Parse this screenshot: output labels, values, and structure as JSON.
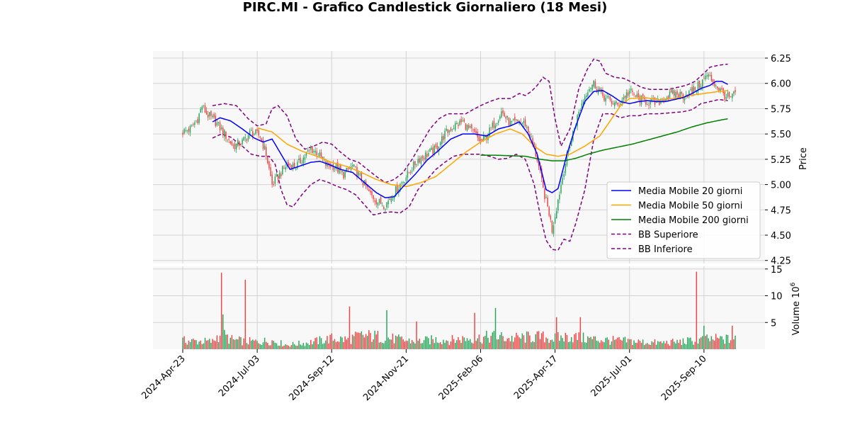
{
  "chart_data": {
    "type": "candlestick",
    "title": "PIRC.MI - Grafico Candlestick Giornaliero (18 Mesi)",
    "ylabel": "Price",
    "volume_label": "Volume",
    "volume_exponent_label": "10",
    "volume_exponent_power": "6",
    "ylim": [
      4.22,
      6.32
    ],
    "volume_ylim": [
      0,
      15.5
    ],
    "price_ticks": [
      "6.25",
      "6.00",
      "5.75",
      "5.50",
      "5.25",
      "5.00",
      "4.75",
      "4.50",
      "4.25"
    ],
    "price_tick_values": [
      6.25,
      6.0,
      5.75,
      5.5,
      5.25,
      5.0,
      4.75,
      4.5,
      4.25
    ],
    "volume_ticks": [
      "15",
      "10",
      "5"
    ],
    "volume_tick_values": [
      15,
      10,
      5
    ],
    "x_ticks": [
      "2024-Apr-23",
      "2024-Jul-03",
      "2024-Sep-12",
      "2024-Nov-21",
      "2025-Feb-06",
      "2025-Apr-17",
      "2025-Jul-01",
      "2025-Sep-10"
    ],
    "x_tick_index": [
      0,
      50,
      100,
      150,
      200,
      250,
      300,
      350
    ],
    "grid": true,
    "legend_position": "lower-right",
    "colors": {
      "up": "#26a65b",
      "down": "#ef4444",
      "ma20": "#0000ff",
      "ma50": "#ffa500",
      "ma200": "#008000",
      "bb": "#800080",
      "background": "#f8f8f8",
      "grid": "#d3d3d3"
    },
    "legend": [
      {
        "label": "Media Mobile 20 giorni",
        "color": "#0000ff",
        "dashed": false
      },
      {
        "label": "Media Mobile 50 giorni",
        "color": "#ffa500",
        "dashed": false
      },
      {
        "label": "Media Mobile 200 giorni",
        "color": "#008000",
        "dashed": false
      },
      {
        "label": "BB Superiore",
        "color": "#800080",
        "dashed": true
      },
      {
        "label": "BB Inferiore",
        "color": "#800080",
        "dashed": true
      }
    ],
    "close_keypoints": [
      [
        0,
        5.52
      ],
      [
        5,
        5.55
      ],
      [
        10,
        5.65
      ],
      [
        13,
        5.78
      ],
      [
        16,
        5.7
      ],
      [
        22,
        5.62
      ],
      [
        28,
        5.5
      ],
      [
        34,
        5.38
      ],
      [
        40,
        5.42
      ],
      [
        46,
        5.52
      ],
      [
        52,
        5.48
      ],
      [
        56,
        5.3
      ],
      [
        60,
        5.0
      ],
      [
        64,
        5.08
      ],
      [
        70,
        5.2
      ],
      [
        76,
        5.18
      ],
      [
        82,
        5.28
      ],
      [
        86,
        5.35
      ],
      [
        90,
        5.32
      ],
      [
        96,
        5.2
      ],
      [
        102,
        5.18
      ],
      [
        108,
        5.1
      ],
      [
        114,
        5.18
      ],
      [
        120,
        5.05
      ],
      [
        126,
        4.9
      ],
      [
        132,
        4.82
      ],
      [
        136,
        4.8
      ],
      [
        140,
        4.88
      ],
      [
        146,
        5.0
      ],
      [
        152,
        5.12
      ],
      [
        158,
        5.25
      ],
      [
        164,
        5.3
      ],
      [
        170,
        5.35
      ],
      [
        176,
        5.5
      ],
      [
        182,
        5.58
      ],
      [
        188,
        5.62
      ],
      [
        192,
        5.55
      ],
      [
        196,
        5.5
      ],
      [
        200,
        5.42
      ],
      [
        204,
        5.48
      ],
      [
        210,
        5.62
      ],
      [
        214,
        5.72
      ],
      [
        220,
        5.6
      ],
      [
        226,
        5.62
      ],
      [
        230,
        5.6
      ],
      [
        234,
        5.45
      ],
      [
        238,
        5.25
      ],
      [
        242,
        4.95
      ],
      [
        246,
        4.72
      ],
      [
        248,
        4.55
      ],
      [
        252,
        4.85
      ],
      [
        256,
        5.15
      ],
      [
        260,
        5.4
      ],
      [
        264,
        5.62
      ],
      [
        268,
        5.8
      ],
      [
        272,
        5.95
      ],
      [
        276,
        6.0
      ],
      [
        280,
        5.92
      ],
      [
        284,
        5.85
      ],
      [
        288,
        5.82
      ],
      [
        292,
        5.78
      ],
      [
        296,
        5.86
      ],
      [
        300,
        5.92
      ],
      [
        306,
        5.85
      ],
      [
        312,
        5.82
      ],
      [
        318,
        5.8
      ],
      [
        324,
        5.86
      ],
      [
        330,
        5.9
      ],
      [
        336,
        5.88
      ],
      [
        342,
        5.92
      ],
      [
        348,
        6.0
      ],
      [
        352,
        6.08
      ],
      [
        356,
        6.02
      ],
      [
        360,
        5.95
      ],
      [
        364,
        5.88
      ],
      [
        368,
        5.85
      ],
      [
        371,
        5.9
      ]
    ],
    "ma20_keypoints": [
      [
        20,
        5.62
      ],
      [
        25,
        5.66
      ],
      [
        32,
        5.63
      ],
      [
        40,
        5.55
      ],
      [
        48,
        5.46
      ],
      [
        54,
        5.42
      ],
      [
        60,
        5.45
      ],
      [
        66,
        5.3
      ],
      [
        72,
        5.15
      ],
      [
        78,
        5.18
      ],
      [
        86,
        5.22
      ],
      [
        92,
        5.23
      ],
      [
        98,
        5.2
      ],
      [
        106,
        5.15
      ],
      [
        114,
        5.12
      ],
      [
        122,
        5.02
      ],
      [
        130,
        4.92
      ],
      [
        136,
        4.87
      ],
      [
        142,
        4.88
      ],
      [
        148,
        4.98
      ],
      [
        156,
        5.1
      ],
      [
        164,
        5.24
      ],
      [
        172,
        5.34
      ],
      [
        180,
        5.45
      ],
      [
        188,
        5.5
      ],
      [
        196,
        5.5
      ],
      [
        204,
        5.48
      ],
      [
        212,
        5.55
      ],
      [
        220,
        5.58
      ],
      [
        226,
        5.62
      ],
      [
        232,
        5.5
      ],
      [
        238,
        5.3
      ],
      [
        244,
        4.95
      ],
      [
        248,
        4.92
      ],
      [
        252,
        4.96
      ],
      [
        258,
        5.3
      ],
      [
        264,
        5.58
      ],
      [
        270,
        5.82
      ],
      [
        276,
        5.92
      ],
      [
        282,
        5.93
      ],
      [
        288,
        5.88
      ],
      [
        294,
        5.82
      ],
      [
        300,
        5.8
      ],
      [
        306,
        5.82
      ],
      [
        312,
        5.83
      ],
      [
        318,
        5.82
      ],
      [
        324,
        5.82
      ],
      [
        330,
        5.84
      ],
      [
        336,
        5.86
      ],
      [
        342,
        5.9
      ],
      [
        348,
        5.95
      ],
      [
        354,
        5.98
      ],
      [
        358,
        6.02
      ],
      [
        362,
        6.02
      ],
      [
        366,
        5.99
      ]
    ],
    "ma50_keypoints": [
      [
        50,
        5.56
      ],
      [
        60,
        5.52
      ],
      [
        70,
        5.4
      ],
      [
        80,
        5.33
      ],
      [
        90,
        5.28
      ],
      [
        100,
        5.22
      ],
      [
        110,
        5.18
      ],
      [
        120,
        5.12
      ],
      [
        130,
        5.05
      ],
      [
        140,
        5.0
      ],
      [
        150,
        4.98
      ],
      [
        160,
        5.02
      ],
      [
        170,
        5.08
      ],
      [
        180,
        5.2
      ],
      [
        190,
        5.32
      ],
      [
        200,
        5.42
      ],
      [
        210,
        5.5
      ],
      [
        220,
        5.55
      ],
      [
        228,
        5.5
      ],
      [
        236,
        5.38
      ],
      [
        244,
        5.3
      ],
      [
        252,
        5.28
      ],
      [
        260,
        5.3
      ],
      [
        270,
        5.38
      ],
      [
        280,
        5.48
      ],
      [
        288,
        5.65
      ],
      [
        294,
        5.78
      ],
      [
        300,
        5.85
      ],
      [
        310,
        5.86
      ],
      [
        320,
        5.84
      ],
      [
        330,
        5.85
      ],
      [
        340,
        5.88
      ],
      [
        350,
        5.9
      ],
      [
        360,
        5.92
      ],
      [
        366,
        5.93
      ]
    ],
    "ma200_keypoints": [
      [
        200,
        5.29
      ],
      [
        210,
        5.29
      ],
      [
        220,
        5.285
      ],
      [
        230,
        5.28
      ],
      [
        240,
        5.25
      ],
      [
        248,
        5.235
      ],
      [
        256,
        5.235
      ],
      [
        264,
        5.26
      ],
      [
        272,
        5.3
      ],
      [
        282,
        5.34
      ],
      [
        292,
        5.37
      ],
      [
        302,
        5.4
      ],
      [
        312,
        5.44
      ],
      [
        322,
        5.48
      ],
      [
        332,
        5.52
      ],
      [
        342,
        5.57
      ],
      [
        352,
        5.61
      ],
      [
        362,
        5.64
      ],
      [
        366,
        5.65
      ]
    ],
    "bb_upper_keypoints": [
      [
        20,
        5.78
      ],
      [
        28,
        5.8
      ],
      [
        36,
        5.78
      ],
      [
        44,
        5.65
      ],
      [
        50,
        5.58
      ],
      [
        56,
        5.6
      ],
      [
        60,
        5.75
      ],
      [
        64,
        5.78
      ],
      [
        70,
        5.68
      ],
      [
        76,
        5.45
      ],
      [
        82,
        5.35
      ],
      [
        88,
        5.38
      ],
      [
        94,
        5.42
      ],
      [
        100,
        5.4
      ],
      [
        106,
        5.32
      ],
      [
        112,
        5.25
      ],
      [
        118,
        5.22
      ],
      [
        124,
        5.15
      ],
      [
        130,
        5.08
      ],
      [
        136,
        5.02
      ],
      [
        142,
        5.05
      ],
      [
        148,
        5.12
      ],
      [
        154,
        5.25
      ],
      [
        160,
        5.4
      ],
      [
        166,
        5.55
      ],
      [
        172,
        5.65
      ],
      [
        178,
        5.7
      ],
      [
        184,
        5.7
      ],
      [
        190,
        5.7
      ],
      [
        196,
        5.75
      ],
      [
        200,
        5.78
      ],
      [
        206,
        5.82
      ],
      [
        212,
        5.85
      ],
      [
        220,
        5.85
      ],
      [
        226,
        5.9
      ],
      [
        230,
        5.88
      ],
      [
        234,
        5.92
      ],
      [
        238,
        5.98
      ],
      [
        242,
        6.06
      ],
      [
        246,
        6.02
      ],
      [
        250,
        5.65
      ],
      [
        254,
        5.38
      ],
      [
        260,
        5.55
      ],
      [
        266,
        5.95
      ],
      [
        272,
        6.15
      ],
      [
        276,
        6.24
      ],
      [
        280,
        6.22
      ],
      [
        284,
        6.1
      ],
      [
        290,
        6.06
      ],
      [
        296,
        6.05
      ],
      [
        302,
        6.01
      ],
      [
        308,
        5.96
      ],
      [
        314,
        5.94
      ],
      [
        320,
        5.94
      ],
      [
        326,
        5.94
      ],
      [
        332,
        5.96
      ],
      [
        338,
        5.98
      ],
      [
        344,
        6.02
      ],
      [
        350,
        6.1
      ],
      [
        354,
        6.16
      ],
      [
        360,
        6.18
      ],
      [
        366,
        6.19
      ]
    ],
    "bb_lower_keypoints": [
      [
        20,
        5.46
      ],
      [
        26,
        5.5
      ],
      [
        32,
        5.47
      ],
      [
        40,
        5.38
      ],
      [
        46,
        5.3
      ],
      [
        52,
        5.28
      ],
      [
        58,
        5.28
      ],
      [
        62,
        5.2
      ],
      [
        66,
        4.95
      ],
      [
        70,
        4.8
      ],
      [
        74,
        4.78
      ],
      [
        80,
        4.9
      ],
      [
        86,
        5.0
      ],
      [
        92,
        5.05
      ],
      [
        98,
        5.02
      ],
      [
        104,
        4.98
      ],
      [
        110,
        4.95
      ],
      [
        116,
        4.9
      ],
      [
        122,
        4.8
      ],
      [
        128,
        4.7
      ],
      [
        134,
        4.72
      ],
      [
        140,
        4.73
      ],
      [
        146,
        4.72
      ],
      [
        152,
        4.78
      ],
      [
        158,
        4.95
      ],
      [
        164,
        5.05
      ],
      [
        170,
        5.15
      ],
      [
        176,
        5.22
      ],
      [
        182,
        5.28
      ],
      [
        188,
        5.3
      ],
      [
        194,
        5.3
      ],
      [
        200,
        5.3
      ],
      [
        206,
        5.28
      ],
      [
        212,
        5.25
      ],
      [
        218,
        5.26
      ],
      [
        224,
        5.3
      ],
      [
        230,
        5.25
      ],
      [
        236,
        5.0
      ],
      [
        240,
        4.7
      ],
      [
        244,
        4.45
      ],
      [
        248,
        4.36
      ],
      [
        252,
        4.35
      ],
      [
        256,
        4.46
      ],
      [
        260,
        4.44
      ],
      [
        264,
        4.62
      ],
      [
        270,
        4.95
      ],
      [
        276,
        5.45
      ],
      [
        282,
        5.7
      ],
      [
        288,
        5.7
      ],
      [
        294,
        5.66
      ],
      [
        300,
        5.68
      ],
      [
        306,
        5.68
      ],
      [
        312,
        5.7
      ],
      [
        320,
        5.7
      ],
      [
        328,
        5.71
      ],
      [
        336,
        5.72
      ],
      [
        342,
        5.74
      ],
      [
        348,
        5.8
      ],
      [
        354,
        5.82
      ],
      [
        360,
        5.84
      ],
      [
        366,
        5.83
      ]
    ],
    "volume_keypoints": [
      [
        0,
        1.6
      ],
      [
        10,
        1.5
      ],
      [
        20,
        1.4
      ],
      [
        25,
        3.0
      ],
      [
        32,
        1.8
      ],
      [
        40,
        1.5
      ],
      [
        50,
        1.4
      ],
      [
        60,
        1.6
      ],
      [
        70,
        0.8
      ],
      [
        80,
        1.1
      ],
      [
        90,
        1.5
      ],
      [
        100,
        2.0
      ],
      [
        110,
        1.8
      ],
      [
        120,
        2.5
      ],
      [
        130,
        2.4
      ],
      [
        140,
        2.0
      ],
      [
        150,
        1.6
      ],
      [
        160,
        1.5
      ],
      [
        170,
        1.8
      ],
      [
        180,
        1.7
      ],
      [
        190,
        2.0
      ],
      [
        200,
        2.1
      ],
      [
        210,
        2.4
      ],
      [
        220,
        2.0
      ],
      [
        230,
        2.2
      ],
      [
        240,
        2.3
      ],
      [
        250,
        2.0
      ],
      [
        260,
        2.4
      ],
      [
        270,
        2.0
      ],
      [
        280,
        1.8
      ],
      [
        290,
        1.6
      ],
      [
        300,
        1.5
      ],
      [
        310,
        1.3
      ],
      [
        320,
        1.2
      ],
      [
        330,
        1.3
      ],
      [
        340,
        1.5
      ],
      [
        350,
        1.8
      ],
      [
        360,
        1.9
      ],
      [
        371,
        1.8
      ]
    ],
    "volume_spikes": [
      [
        26,
        14.3,
        "down"
      ],
      [
        27,
        6.5,
        "up"
      ],
      [
        42,
        13.0,
        "down"
      ],
      [
        112,
        8.0,
        "down"
      ],
      [
        137,
        7.3,
        "up"
      ],
      [
        157,
        5.2,
        "down"
      ],
      [
        196,
        6.8,
        "down"
      ],
      [
        210,
        7.7,
        "up"
      ],
      [
        251,
        6.0,
        "down"
      ],
      [
        267,
        6.0,
        "down"
      ],
      [
        345,
        14.5,
        "down"
      ],
      [
        350,
        4.4,
        "up"
      ],
      [
        369,
        4.4,
        "down"
      ]
    ],
    "n_candles": 372
  }
}
